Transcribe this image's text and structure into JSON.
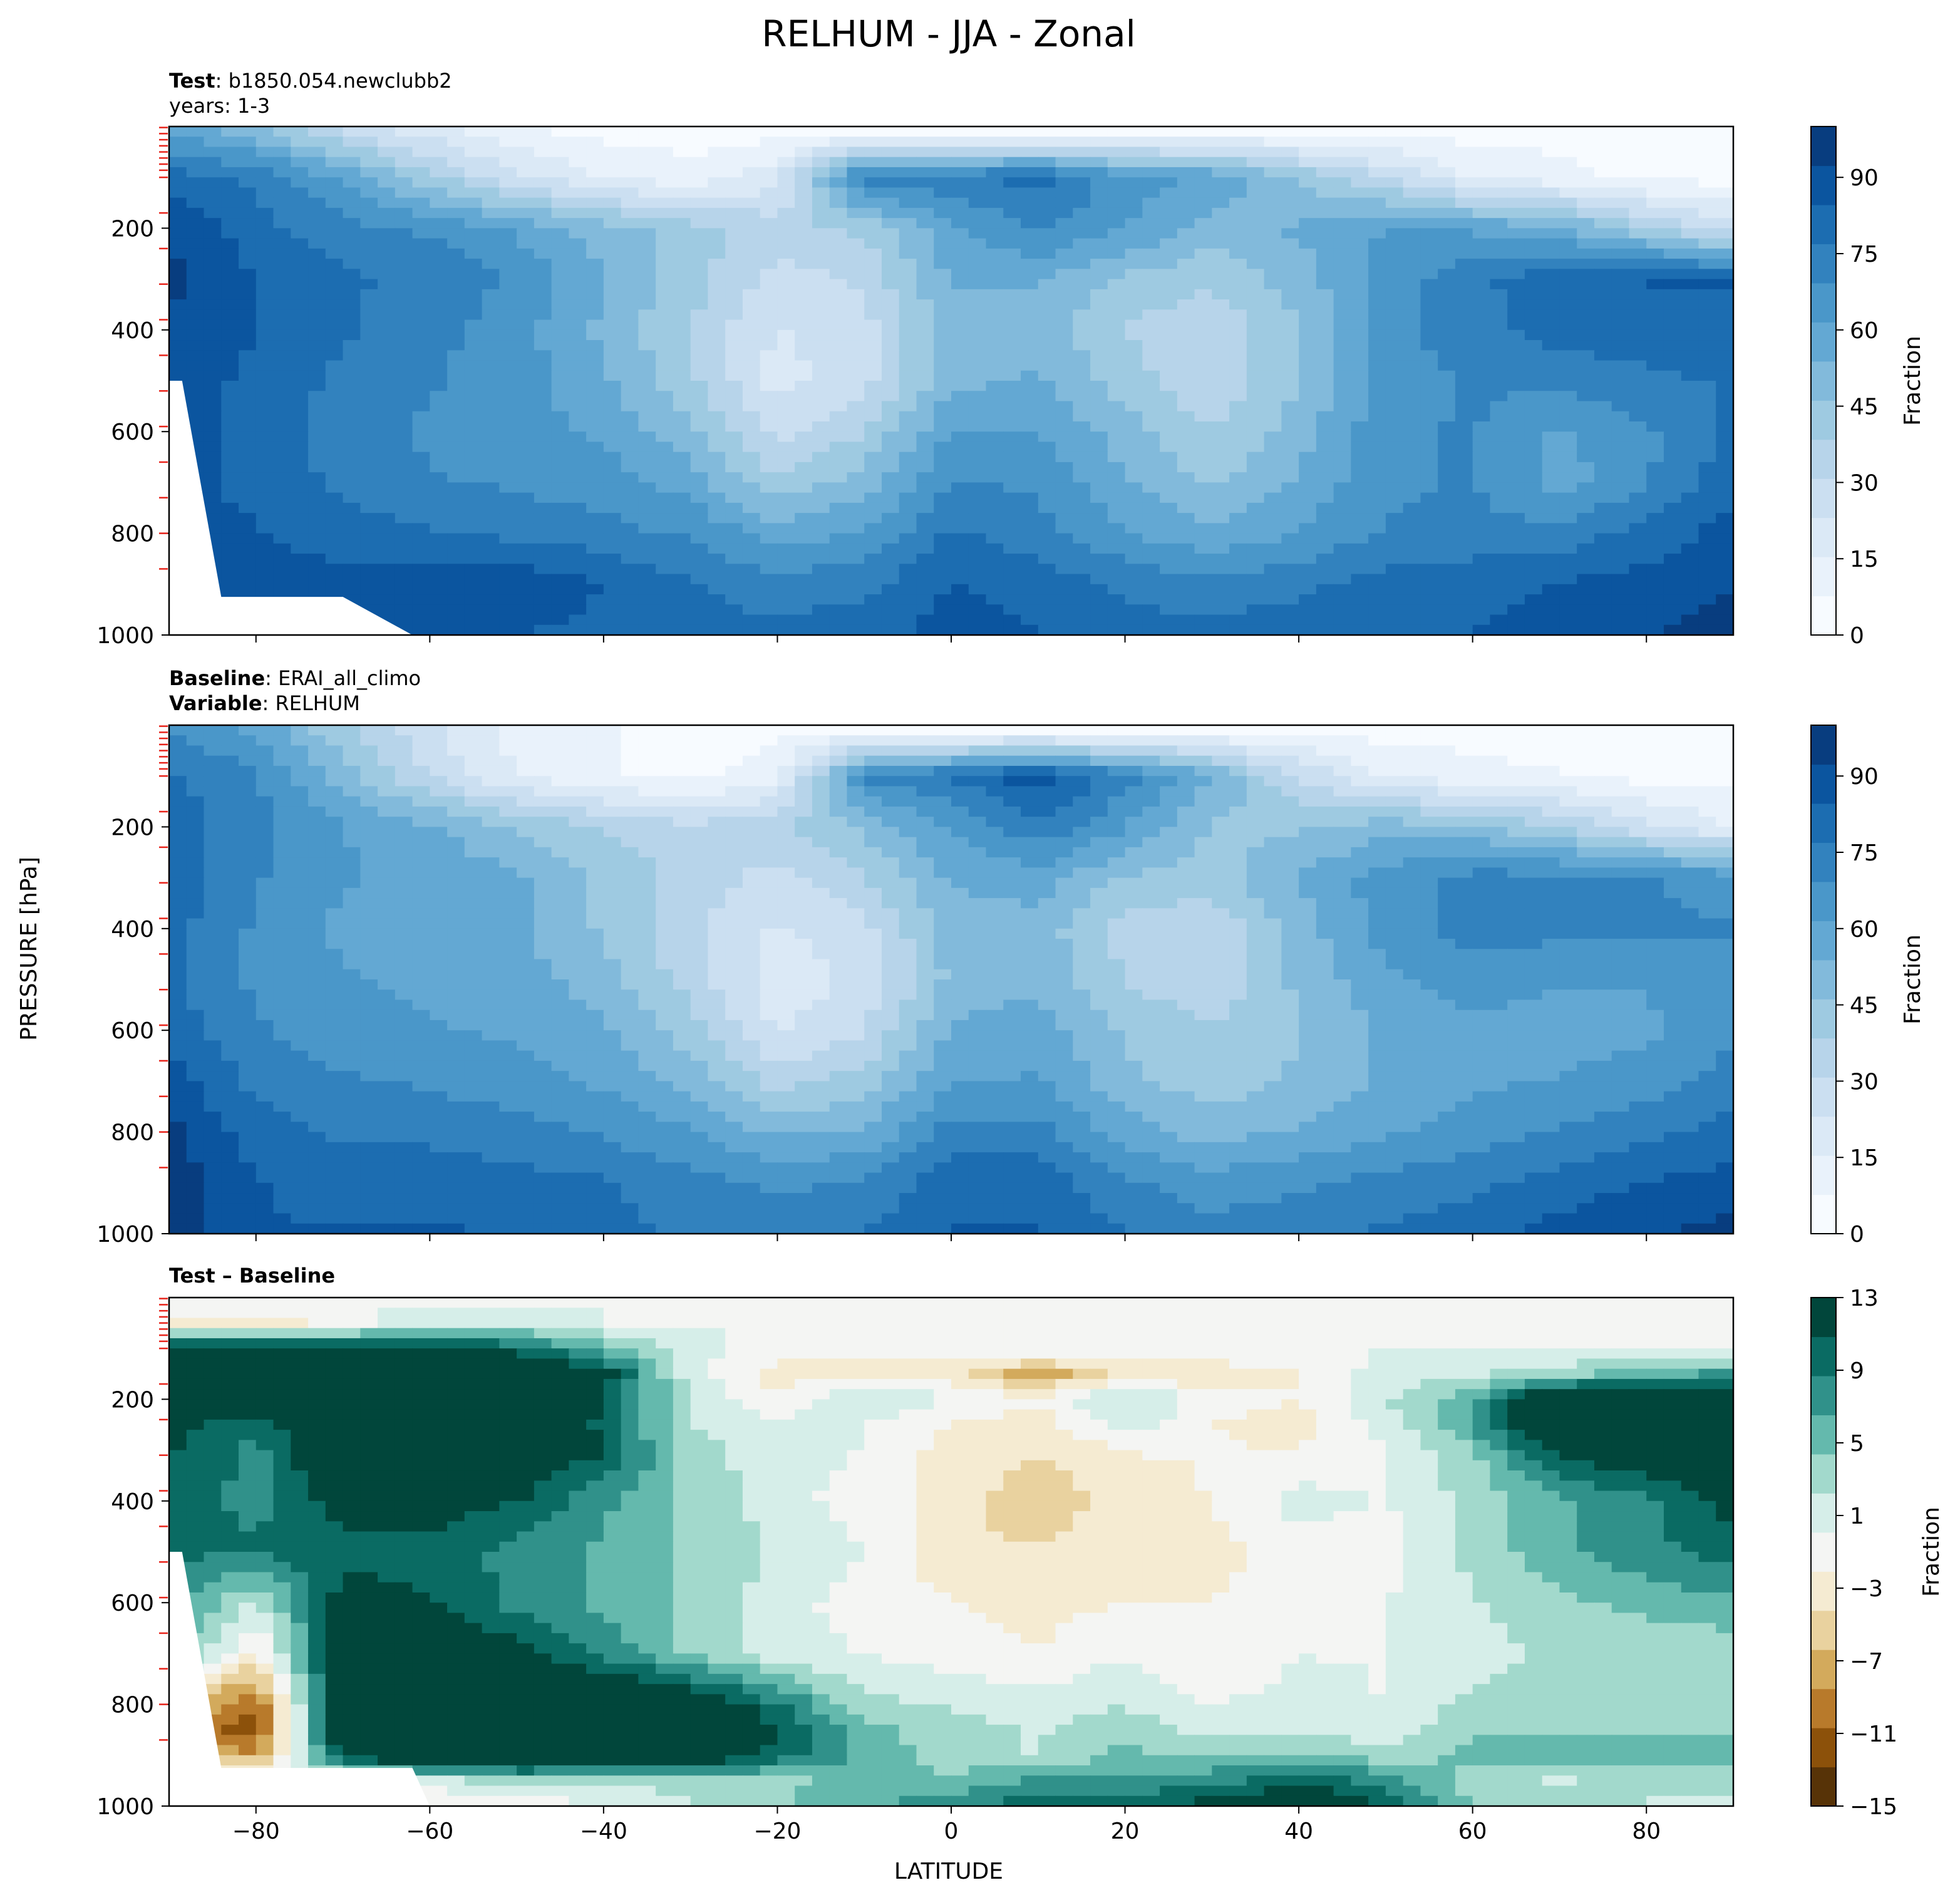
{
  "figure": {
    "title": "RELHUM - JJA - Zonal",
    "ylabel": "PRESSURE [hPa]",
    "xlabel": "LATITUDE",
    "colors": {
      "blues": [
        "#f7fbff",
        "#e9f2fb",
        "#dbe9f6",
        "#cbdff1",
        "#b7d4ea",
        "#9ecae1",
        "#82badb",
        "#63a8d3",
        "#4a97c9",
        "#3282be",
        "#1c6db1",
        "#0b559f",
        "#083d7f"
      ],
      "brbg": [
        "#573307",
        "#8c510a",
        "#b87a2b",
        "#d3aa5c",
        "#e9d29f",
        "#f5ebd2",
        "#f4f5f3",
        "#d6eee9",
        "#a2d9cc",
        "#64b9ad",
        "#30918a",
        "#0a6b63",
        "#01463b"
      ],
      "mask": "#ffffff",
      "cutoff_marks": "#e8231a"
    }
  },
  "chart_data": [
    {
      "type": "heatmap",
      "panel": "test",
      "header": {
        "line1_bold": "Test",
        "line1_text": "b1850.054.newclubb2",
        "line2_text": "years: 1-3"
      },
      "x_ticks": [
        -80,
        -60,
        -40,
        -20,
        0,
        20,
        40,
        60,
        80
      ],
      "y_ticks": [
        200,
        400,
        600,
        800,
        1000
      ],
      "xlim": [
        -90,
        90
      ],
      "ylim": [
        1000,
        0
      ],
      "colorbar": {
        "label": "Fraction",
        "ticks": [
          0,
          15,
          30,
          45,
          60,
          75,
          90
        ],
        "range": [
          0,
          100
        ]
      },
      "lats": [
        -90,
        -80,
        -70,
        -60,
        -50,
        -40,
        -30,
        -20,
        -10,
        0,
        10,
        20,
        30,
        40,
        50,
        60,
        70,
        80,
        90
      ],
      "levels": [
        10,
        100,
        200,
        300,
        400,
        500,
        600,
        700,
        800,
        900,
        1000
      ],
      "values": [
        [
          60,
          50,
          30,
          20,
          10,
          5,
          5,
          5,
          5,
          5,
          5,
          5,
          5,
          5,
          5,
          5,
          5,
          5,
          5
        ],
        [
          80,
          75,
          60,
          40,
          25,
          15,
          10,
          20,
          75,
          75,
          80,
          65,
          60,
          45,
          30,
          15,
          10,
          5,
          5
        ],
        [
          92,
          80,
          72,
          68,
          60,
          50,
          42,
          35,
          40,
          60,
          70,
          62,
          50,
          55,
          62,
          60,
          55,
          40,
          25
        ],
        [
          94,
          85,
          78,
          75,
          68,
          55,
          42,
          28,
          32,
          55,
          55,
          45,
          40,
          50,
          65,
          75,
          82,
          85,
          85
        ],
        [
          92,
          85,
          78,
          72,
          65,
          52,
          38,
          22,
          28,
          50,
          50,
          38,
          32,
          45,
          65,
          75,
          80,
          82,
          82
        ],
        [
          90,
          82,
          75,
          70,
          65,
          55,
          40,
          20,
          28,
          52,
          55,
          42,
          32,
          45,
          65,
          70,
          72,
          75,
          78
        ],
        [
          88,
          82,
          74,
          68,
          65,
          60,
          48,
          28,
          38,
          62,
          62,
          50,
          38,
          50,
          68,
          70,
          60,
          68,
          78
        ],
        [
          88,
          82,
          75,
          70,
          68,
          65,
          58,
          40,
          50,
          70,
          68,
          55,
          45,
          55,
          68,
          70,
          58,
          68,
          82
        ],
        [
          90,
          85,
          80,
          78,
          75,
          72,
          68,
          58,
          62,
          78,
          72,
          62,
          55,
          62,
          70,
          72,
          72,
          80,
          88
        ],
        [
          90,
          90,
          88,
          90,
          90,
          85,
          78,
          72,
          75,
          85,
          82,
          75,
          72,
          75,
          80,
          82,
          85,
          88,
          92
        ],
        [
          85,
          85,
          85,
          85,
          85,
          82,
          80,
          80,
          82,
          88,
          85,
          80,
          80,
          82,
          82,
          85,
          88,
          92,
          95
        ]
      ],
      "mask": [
        [
          -90,
          500
        ],
        [
          -88.5,
          500
        ],
        [
          -84,
          925
        ],
        [
          -70,
          925
        ],
        [
          -62,
          1000
        ],
        [
          -90,
          1000
        ]
      ]
    },
    {
      "type": "heatmap",
      "panel": "baseline",
      "header": {
        "line1_bold": "Baseline",
        "line1_text": "ERAI_all_climo",
        "line2_bold": "Variable",
        "line2_text": "RELHUM"
      },
      "x_ticks": [
        -80,
        -60,
        -40,
        -20,
        0,
        20,
        40,
        60,
        80
      ],
      "y_ticks": [
        200,
        400,
        600,
        800,
        1000
      ],
      "xlim": [
        -90,
        90
      ],
      "ylim": [
        1000,
        0
      ],
      "colorbar": {
        "label": "Fraction",
        "ticks": [
          0,
          15,
          30,
          45,
          60,
          75,
          90
        ],
        "range": [
          0,
          100
        ]
      },
      "lats": [
        -90,
        -80,
        -70,
        -60,
        -50,
        -40,
        -30,
        -20,
        -10,
        0,
        10,
        20,
        30,
        40,
        50,
        60,
        70,
        80,
        90
      ],
      "levels": [
        10,
        100,
        200,
        300,
        400,
        500,
        600,
        700,
        800,
        900,
        1000
      ],
      "values": [
        [
          70,
          60,
          40,
          25,
          12,
          8,
          5,
          5,
          5,
          5,
          5,
          5,
          5,
          5,
          5,
          5,
          5,
          5,
          5
        ],
        [
          78,
          70,
          50,
          30,
          15,
          8,
          5,
          12,
          72,
          78,
          90,
          72,
          55,
          30,
          15,
          10,
          8,
          5,
          5
        ],
        [
          82,
          72,
          62,
          55,
          45,
          38,
          32,
          38,
          48,
          62,
          75,
          62,
          45,
          45,
          50,
          48,
          38,
          25,
          15
        ],
        [
          82,
          70,
          62,
          60,
          55,
          45,
          35,
          28,
          38,
          55,
          58,
          45,
          42,
          55,
          65,
          72,
          72,
          70,
          65
        ],
        [
          80,
          68,
          60,
          58,
          55,
          45,
          32,
          22,
          28,
          50,
          50,
          35,
          32,
          50,
          65,
          72,
          72,
          70,
          70
        ],
        [
          78,
          68,
          62,
          60,
          58,
          50,
          35,
          18,
          25,
          48,
          52,
          38,
          32,
          48,
          60,
          65,
          62,
          62,
          68
        ],
        [
          82,
          70,
          65,
          62,
          60,
          55,
          42,
          22,
          30,
          55,
          58,
          45,
          40,
          45,
          55,
          60,
          58,
          60,
          68
        ],
        [
          88,
          75,
          70,
          68,
          65,
          60,
          52,
          35,
          42,
          62,
          62,
          48,
          42,
          48,
          55,
          60,
          62,
          65,
          72
        ],
        [
          95,
          80,
          75,
          75,
          72,
          68,
          62,
          52,
          55,
          72,
          72,
          58,
          50,
          55,
          60,
          65,
          70,
          75,
          80
        ],
        [
          98,
          85,
          82,
          82,
          80,
          78,
          72,
          68,
          70,
          82,
          82,
          70,
          65,
          68,
          72,
          75,
          80,
          85,
          88
        ],
        [
          98,
          85,
          85,
          85,
          85,
          80,
          75,
          72,
          78,
          85,
          85,
          78,
          72,
          75,
          78,
          82,
          88,
          92,
          95
        ]
      ]
    },
    {
      "type": "heatmap",
      "panel": "difference",
      "header": {
        "line1_bold": "Test – Baseline"
      },
      "x_ticks": [
        -80,
        -60,
        -40,
        -20,
        0,
        20,
        40,
        60,
        80
      ],
      "y_ticks": [
        200,
        400,
        600,
        800,
        1000
      ],
      "xlim": [
        -90,
        90
      ],
      "ylim": [
        1000,
        0
      ],
      "colorbar": {
        "label": "Fraction",
        "ticks": [
          13,
          9,
          5,
          1,
          -3,
          -7,
          -11,
          -15
        ],
        "range": [
          -15,
          13
        ]
      },
      "lats": [
        -90,
        -80,
        -70,
        -60,
        -50,
        -40,
        -30,
        -20,
        -10,
        0,
        10,
        20,
        30,
        40,
        50,
        60,
        70,
        80,
        90
      ],
      "levels": [
        10,
        50,
        100,
        150,
        200,
        250,
        300,
        400,
        500,
        600,
        700,
        800,
        850,
        900,
        950,
        1000
      ],
      "values": [
        [
          0,
          0,
          0,
          0,
          0,
          0,
          0,
          0,
          0,
          0,
          0,
          0,
          0,
          0,
          0,
          0,
          0,
          0,
          0
        ],
        [
          -2,
          -4,
          -1,
          2,
          2,
          0,
          0,
          0,
          0,
          0,
          0,
          0,
          0,
          0,
          0,
          0,
          0,
          0,
          0
        ],
        [
          12,
          14,
          12,
          12,
          10,
          5,
          1,
          -1,
          -1,
          -1,
          0,
          -1,
          0,
          0,
          0,
          0,
          0,
          0,
          0
        ],
        [
          14,
          15,
          16,
          18,
          16,
          12,
          1,
          -3,
          -3,
          -3,
          -8,
          -3,
          -4,
          -2,
          1,
          2,
          3,
          6,
          7
        ],
        [
          12,
          14,
          16,
          16,
          16,
          11,
          2,
          -2,
          3,
          0,
          -2,
          3,
          -1,
          -2,
          2,
          6,
          16,
          16,
          16
        ],
        [
          12,
          9,
          16,
          16,
          16,
          10,
          2,
          1,
          0,
          -2,
          -3,
          1,
          -2,
          -3,
          1,
          7,
          16,
          16,
          16
        ],
        [
          11,
          8,
          15,
          15,
          14,
          11,
          3,
          1,
          0,
          -3,
          -4,
          -2,
          -2,
          -2,
          0,
          4,
          12,
          14,
          15
        ],
        [
          10,
          8,
          12,
          12,
          11,
          7,
          4,
          1,
          -1,
          -3,
          -6,
          -3,
          -2,
          1,
          0,
          3,
          6,
          8,
          12
        ],
        [
          9,
          9,
          10,
          10,
          8,
          6,
          4,
          2,
          0,
          -4,
          -4,
          -3,
          -3,
          -1,
          -1,
          3,
          6,
          8,
          10
        ],
        [
          8,
          2,
          12,
          11,
          8,
          6,
          4,
          1,
          -1,
          -2,
          -3,
          -2,
          -2,
          0,
          0,
          2,
          4,
          5,
          6
        ],
        [
          6,
          -3,
          15,
          14,
          12,
          8,
          4,
          1,
          0,
          -1,
          -2,
          0,
          -2,
          0,
          0,
          1,
          3,
          3,
          3
        ],
        [
          -5,
          -11,
          15,
          16,
          16,
          16,
          14,
          9,
          3,
          2,
          1,
          2,
          0,
          1,
          0,
          3,
          3,
          3,
          3
        ],
        [
          -8,
          -12,
          15,
          16,
          16,
          16,
          16,
          11,
          5,
          3,
          2,
          4,
          1,
          2,
          1,
          4,
          4,
          4,
          4
        ],
        [
          -6,
          -8,
          12,
          16,
          16,
          16,
          14,
          10,
          6,
          3,
          2,
          5,
          4,
          5,
          3,
          5,
          5,
          5,
          5
        ],
        [
          0,
          0,
          0,
          1,
          4,
          3,
          3,
          4,
          5,
          5,
          7,
          7,
          8,
          10,
          8,
          3,
          2,
          3,
          3
        ],
        [
          0,
          0,
          0,
          -2,
          -2,
          0,
          2,
          4,
          6,
          8,
          10,
          10,
          12,
          14,
          11,
          4,
          3,
          2,
          2
        ]
      ],
      "mask": [
        [
          -90,
          500
        ],
        [
          -88.5,
          500
        ],
        [
          -84,
          925
        ],
        [
          -62,
          925
        ],
        [
          -60,
          1000
        ],
        [
          -90,
          1000
        ]
      ]
    }
  ]
}
